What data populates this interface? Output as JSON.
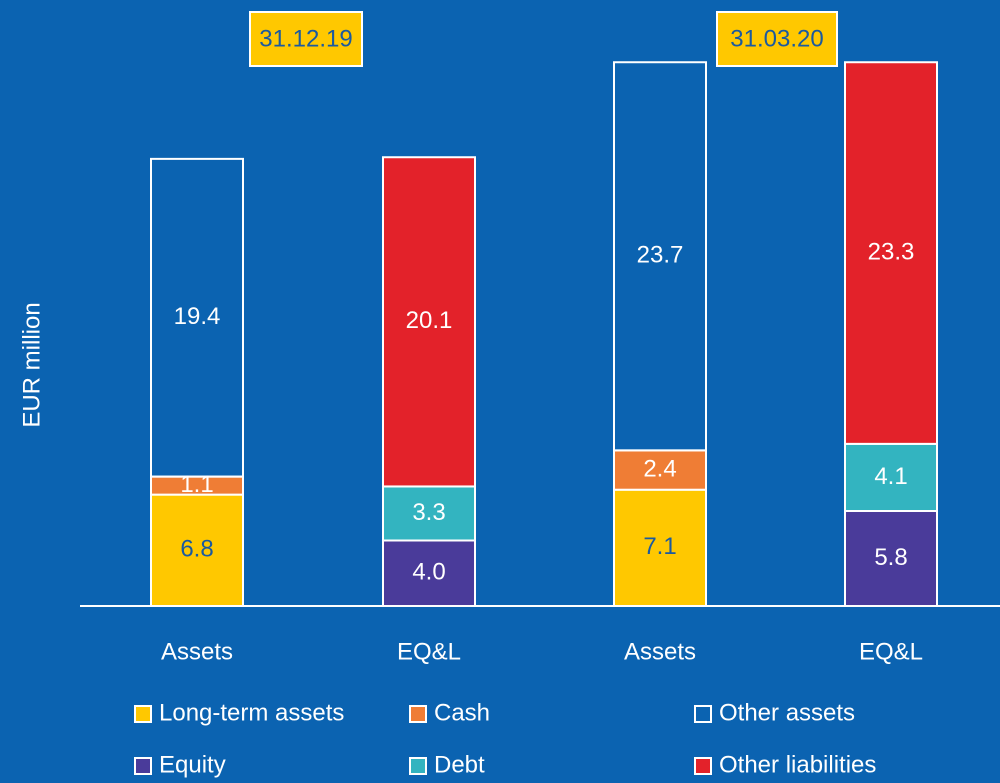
{
  "chart_data": {
    "type": "stacked_bar",
    "y_label": "EUR million",
    "categories": [
      "Assets",
      "EQ&L",
      "Assets",
      "EQ&L"
    ],
    "groups": [
      "31.12.19",
      "31.03.20"
    ],
    "group_color": "#ffc800",
    "ylim": [
      0,
      37
    ],
    "series": [
      {
        "name": "Long-term assets",
        "color": "#ffc800",
        "values": [
          6.8,
          null,
          7.1,
          null
        ]
      },
      {
        "name": "Cash",
        "color": "#ef7d35",
        "values": [
          1.1,
          null,
          2.4,
          null
        ]
      },
      {
        "name": "Other assets",
        "color": "none",
        "values": [
          19.4,
          null,
          23.7,
          null
        ]
      },
      {
        "name": "Equity",
        "color": "#4a3b9a",
        "values": [
          null,
          4.0,
          null,
          5.8
        ],
        "value_labels": [
          null,
          "4.0",
          null,
          "5.8"
        ]
      },
      {
        "name": "Debt",
        "color": "#33b4c0",
        "values": [
          null,
          3.3,
          null,
          4.1
        ]
      },
      {
        "name": "Other liabilities",
        "color": "#e3222a",
        "values": [
          null,
          20.1,
          null,
          23.3
        ]
      }
    ]
  }
}
